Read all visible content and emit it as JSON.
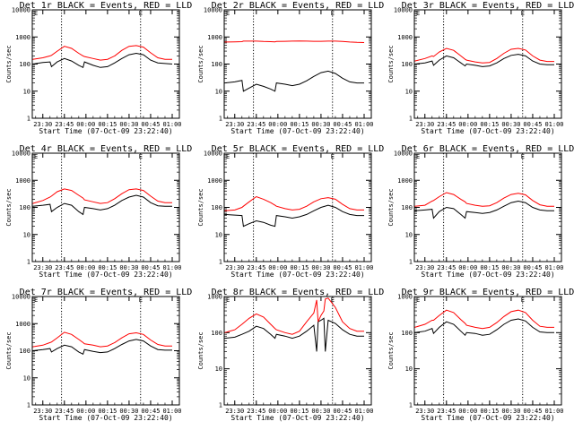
{
  "colors": {
    "events": "#000000",
    "lld": "#ff0000",
    "frame": "#000000",
    "background": "#ffffff"
  },
  "panel_titles": [
    "Det 1r BLACK = Events, RED = LLD",
    "Det 2r BLACK = Events, RED = LLD",
    "Det 3r BLACK = Events, RED = LLD",
    "Det 4r BLACK = Events, RED = LLD",
    "Det 5r BLACK = Events, RED = LLD",
    "Det 6r BLACK = Events, RED = LLD",
    "Det 7r BLACK = Events, RED = LLD",
    "Det 8r BLACK = Events, RED = LLD",
    "Det 9r BLACK = Events, RED = LLD"
  ],
  "ylabel": "Counts/sec",
  "xlabel": "Start Time (07-Oct-09 23:22:40)",
  "xticks": [
    "23:30",
    "23:45",
    "00:00",
    "00:15",
    "00:30",
    "00:45",
    "01:00"
  ],
  "ytick_labels": [
    "1",
    "10",
    "100",
    "1000",
    "10000"
  ],
  "marker_label": "E",
  "chart_data": [
    {
      "type": "line",
      "title": "Det 1r BLACK = Events, RED = LLD",
      "xlabel": "Start Time (07-Oct-09 23:22:40)",
      "ylabel": "Counts/sec",
      "ylim": [
        1,
        10000
      ],
      "yscale": "log",
      "xlim": [
        "23:22:40",
        "01:05"
      ],
      "vlines": [
        "23:43",
        "00:38"
      ],
      "x": [
        "23:23",
        "23:30",
        "23:35",
        "23:36",
        "23:40",
        "23:45",
        "23:50",
        "23:55",
        "23:58",
        "23:59",
        "00:05",
        "00:10",
        "00:15",
        "00:20",
        "00:25",
        "00:30",
        "00:35",
        "00:40",
        "00:45",
        "00:50",
        "00:55",
        "01:00"
      ],
      "series": [
        {
          "name": "Events",
          "values": [
            100,
            115,
            120,
            80,
            120,
            160,
            130,
            90,
            75,
            120,
            90,
            75,
            80,
            110,
            160,
            220,
            250,
            220,
            140,
            110,
            105,
            100
          ]
        },
        {
          "name": "LLD",
          "values": [
            150,
            170,
            200,
            210,
            300,
            450,
            380,
            250,
            200,
            190,
            160,
            140,
            150,
            200,
            320,
            450,
            480,
            420,
            260,
            170,
            150,
            150
          ]
        }
      ]
    },
    {
      "type": "line",
      "title": "Det 2r BLACK = Events, RED = LLD",
      "xlabel": "Start Time (07-Oct-09 23:22:40)",
      "ylabel": "Counts/sec",
      "ylim": [
        1,
        10000
      ],
      "yscale": "log",
      "xlim": [
        "23:22:40",
        "01:05"
      ],
      "vlines": [
        "23:43",
        "00:38"
      ],
      "x": [
        "23:23",
        "23:30",
        "23:35",
        "23:36",
        "23:40",
        "23:45",
        "23:50",
        "23:55",
        "23:58",
        "23:59",
        "00:05",
        "00:10",
        "00:15",
        "00:20",
        "00:25",
        "00:30",
        "00:35",
        "00:40",
        "00:45",
        "00:50",
        "00:55",
        "01:00"
      ],
      "series": [
        {
          "name": "Events",
          "values": [
            20,
            22,
            25,
            10,
            13,
            18,
            15,
            12,
            10,
            20,
            18,
            16,
            18,
            24,
            35,
            48,
            55,
            45,
            30,
            22,
            20,
            20
          ]
        },
        {
          "name": "LLD",
          "values": [
            650,
            660,
            670,
            700,
            700,
            700,
            680,
            670,
            660,
            680,
            690,
            700,
            710,
            700,
            690,
            690,
            700,
            700,
            680,
            650,
            630,
            620
          ]
        }
      ]
    },
    {
      "type": "line",
      "title": "Det 3r BLACK = Events, RED = LLD",
      "xlabel": "Start Time (07-Oct-09 23:22:40)",
      "ylabel": "Counts/sec",
      "ylim": [
        1,
        10000
      ],
      "yscale": "log",
      "xlim": [
        "23:22:40",
        "01:05"
      ],
      "vlines": [
        "23:43",
        "00:38"
      ],
      "x": [
        "23:23",
        "23:30",
        "23:35",
        "23:36",
        "23:40",
        "23:45",
        "23:50",
        "23:55",
        "23:58",
        "23:59",
        "00:05",
        "00:10",
        "00:15",
        "00:20",
        "00:25",
        "00:30",
        "00:35",
        "00:40",
        "00:45",
        "00:50",
        "00:55",
        "01:00"
      ],
      "series": [
        {
          "name": "Events",
          "values": [
            100,
            110,
            130,
            90,
            140,
            200,
            170,
            110,
            85,
            100,
            90,
            80,
            85,
            110,
            160,
            210,
            230,
            200,
            130,
            100,
            95,
            95
          ]
        },
        {
          "name": "LLD",
          "values": [
            130,
            160,
            200,
            190,
            280,
            380,
            320,
            200,
            150,
            140,
            120,
            110,
            115,
            160,
            250,
            350,
            380,
            330,
            200,
            140,
            125,
            125
          ]
        }
      ]
    },
    {
      "type": "line",
      "title": "Det 4r BLACK = Events, RED = LLD",
      "xlabel": "Start Time (07-Oct-09 23:22:40)",
      "ylabel": "Counts/sec",
      "ylim": [
        1,
        10000
      ],
      "yscale": "log",
      "xlim": [
        "23:22:40",
        "01:05"
      ],
      "vlines": [
        "23:43",
        "00:38"
      ],
      "x": [
        "23:23",
        "23:30",
        "23:35",
        "23:36",
        "23:40",
        "23:45",
        "23:50",
        "23:55",
        "23:58",
        "23:59",
        "00:05",
        "00:10",
        "00:15",
        "00:20",
        "00:25",
        "00:30",
        "00:35",
        "00:40",
        "00:45",
        "00:50",
        "00:55",
        "01:00"
      ],
      "series": [
        {
          "name": "Events",
          "values": [
            110,
            120,
            130,
            70,
            100,
            140,
            120,
            70,
            55,
            100,
            90,
            80,
            90,
            120,
            180,
            240,
            280,
            240,
            150,
            115,
            110,
            110
          ]
        },
        {
          "name": "LLD",
          "values": [
            140,
            180,
            240,
            260,
            380,
            480,
            420,
            280,
            220,
            190,
            160,
            140,
            150,
            210,
            320,
            450,
            480,
            420,
            260,
            170,
            150,
            150
          ]
        }
      ]
    },
    {
      "type": "line",
      "title": "Det 5r BLACK = Events, RED = LLD",
      "xlabel": "Start Time (07-Oct-09 23:22:40)",
      "ylabel": "Counts/sec",
      "ylim": [
        1,
        10000
      ],
      "yscale": "log",
      "xlim": [
        "23:22:40",
        "01:05"
      ],
      "vlines": [
        "23:43",
        "00:38"
      ],
      "x": [
        "23:23",
        "23:30",
        "23:35",
        "23:36",
        "23:40",
        "23:45",
        "23:50",
        "23:55",
        "23:58",
        "23:59",
        "00:05",
        "00:10",
        "00:15",
        "00:20",
        "00:25",
        "00:30",
        "00:35",
        "00:40",
        "00:45",
        "00:50",
        "00:55",
        "01:00"
      ],
      "series": [
        {
          "name": "Events",
          "values": [
            55,
            52,
            50,
            20,
            25,
            32,
            28,
            22,
            20,
            50,
            45,
            40,
            45,
            55,
            75,
            100,
            120,
            100,
            70,
            55,
            50,
            50
          ]
        },
        {
          "name": "LLD",
          "values": [
            75,
            80,
            100,
            110,
            160,
            250,
            200,
            150,
            120,
            110,
            90,
            80,
            85,
            110,
            160,
            210,
            230,
            200,
            130,
            90,
            80,
            80
          ]
        }
      ]
    },
    {
      "type": "line",
      "title": "Det 6r BLACK = Events, RED = LLD",
      "xlabel": "Start Time (07-Oct-09 23:22:40)",
      "ylabel": "Counts/sec",
      "ylim": [
        1,
        10000
      ],
      "yscale": "log",
      "xlim": [
        "23:22:40",
        "01:05"
      ],
      "vlines": [
        "23:43",
        "00:38"
      ],
      "x": [
        "23:23",
        "23:30",
        "23:35",
        "23:36",
        "23:40",
        "23:45",
        "23:50",
        "23:55",
        "23:58",
        "23:59",
        "00:05",
        "00:10",
        "00:15",
        "00:20",
        "00:25",
        "00:30",
        "00:35",
        "00:40",
        "00:45",
        "00:50",
        "00:55",
        "01:00"
      ],
      "series": [
        {
          "name": "Events",
          "values": [
            75,
            80,
            85,
            40,
            70,
            100,
            90,
            55,
            40,
            70,
            65,
            60,
            65,
            80,
            110,
            150,
            170,
            150,
            100,
            80,
            75,
            75
          ]
        },
        {
          "name": "LLD",
          "values": [
            110,
            120,
            170,
            180,
            250,
            350,
            300,
            200,
            160,
            140,
            120,
            110,
            115,
            150,
            220,
            300,
            330,
            290,
            180,
            125,
            110,
            110
          ]
        }
      ]
    },
    {
      "type": "line",
      "title": "Det 7r BLACK = Events, RED = LLD",
      "xlabel": "Start Time (07-Oct-09 23:22:40)",
      "ylabel": "Counts/sec",
      "ylim": [
        1,
        10000
      ],
      "yscale": "log",
      "xlim": [
        "23:22:40",
        "01:05"
      ],
      "vlines": [
        "23:43",
        "00:38"
      ],
      "x": [
        "23:23",
        "23:30",
        "23:35",
        "23:36",
        "23:40",
        "23:45",
        "23:50",
        "23:55",
        "23:58",
        "23:59",
        "00:05",
        "00:10",
        "00:15",
        "00:20",
        "00:25",
        "00:30",
        "00:35",
        "00:40",
        "00:45",
        "00:50",
        "00:55",
        "01:00"
      ],
      "series": [
        {
          "name": "Events",
          "values": [
            100,
            110,
            120,
            90,
            120,
            160,
            140,
            90,
            75,
            110,
            95,
            85,
            90,
            120,
            170,
            230,
            260,
            230,
            150,
            110,
            105,
            105
          ]
        },
        {
          "name": "LLD",
          "values": [
            140,
            160,
            200,
            210,
            300,
            480,
            400,
            260,
            200,
            180,
            160,
            140,
            150,
            200,
            300,
            420,
            460,
            400,
            250,
            170,
            150,
            150
          ]
        }
      ]
    },
    {
      "type": "line",
      "title": "Det 8r BLACK = Events, RED = LLD",
      "xlabel": "Start Time (07-Oct-09 23:22:40)",
      "ylabel": "Counts/sec",
      "ylim": [
        1,
        1000
      ],
      "yscale": "log",
      "xlim": [
        "23:22:40",
        "01:05"
      ],
      "vlines": [
        "23:43",
        "00:38"
      ],
      "x": [
        "23:23",
        "23:30",
        "23:35",
        "23:40",
        "23:45",
        "23:50",
        "23:55",
        "23:58",
        "23:59",
        "00:05",
        "00:10",
        "00:15",
        "00:20",
        "00:25",
        "00:27",
        "00:28",
        "00:30",
        "00:32",
        "00:33",
        "00:35",
        "00:40",
        "00:45",
        "00:50",
        "00:55",
        "01:00"
      ],
      "series": [
        {
          "name": "Events",
          "values": [
            70,
            75,
            90,
            110,
            150,
            130,
            90,
            70,
            90,
            80,
            70,
            80,
            110,
            160,
            30,
            200,
            220,
            250,
            30,
            220,
            180,
            120,
            90,
            80,
            80
          ]
        },
        {
          "name": "LLD",
          "values": [
            100,
            120,
            170,
            250,
            330,
            270,
            170,
            130,
            120,
            100,
            90,
            110,
            200,
            350,
            800,
            200,
            300,
            400,
            850,
            900,
            500,
            200,
            130,
            110,
            110
          ]
        }
      ]
    },
    {
      "type": "line",
      "title": "Det 9r BLACK = Events, RED = LLD",
      "xlabel": "Start Time (07-Oct-09 23:22:40)",
      "ylabel": "Counts/sec",
      "ylim": [
        1,
        1000
      ],
      "yscale": "log",
      "xlim": [
        "23:22:40",
        "01:05"
      ],
      "vlines": [
        "23:43",
        "00:38"
      ],
      "x": [
        "23:23",
        "23:30",
        "23:35",
        "23:36",
        "23:40",
        "23:45",
        "23:50",
        "23:55",
        "23:58",
        "23:59",
        "00:05",
        "00:10",
        "00:15",
        "00:20",
        "00:25",
        "00:30",
        "00:35",
        "00:40",
        "00:45",
        "00:50",
        "00:55",
        "01:00"
      ],
      "series": [
        {
          "name": "Events",
          "values": [
            100,
            110,
            130,
            95,
            140,
            200,
            170,
            110,
            85,
            100,
            95,
            85,
            90,
            120,
            170,
            220,
            240,
            210,
            140,
            105,
            100,
            100
          ]
        },
        {
          "name": "LLD",
          "values": [
            140,
            170,
            220,
            220,
            300,
            420,
            360,
            230,
            180,
            160,
            140,
            130,
            140,
            190,
            280,
            380,
            420,
            360,
            220,
            150,
            140,
            140
          ]
        }
      ]
    }
  ]
}
